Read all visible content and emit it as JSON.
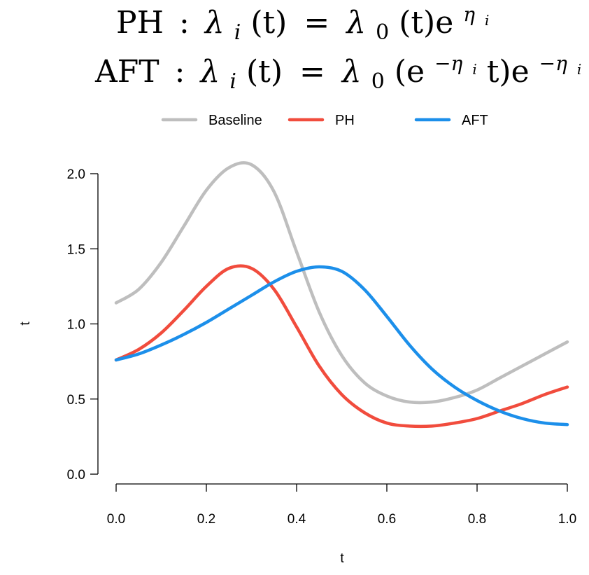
{
  "formulas": {
    "ph": {
      "model": "PH",
      "lhs": "λ",
      "lhs_sub": "i",
      "arg": "(t)",
      "rhs": "λ",
      "rhs_sub": "0",
      "rhs_arg": "(t)e",
      "exp": "η",
      "exp_sub": "i"
    },
    "aft": {
      "model": "AFT",
      "lhs": "λ",
      "lhs_sub": "i",
      "arg": "(t)",
      "rhs": "λ",
      "rhs_sub": "0",
      "rhs_arg_open": "(e",
      "inner_exp": "−η",
      "inner_exp_sub": "i",
      "rhs_arg_close": "t)e",
      "exp": "−η",
      "exp_sub": "i"
    }
  },
  "chart_data": {
    "type": "line",
    "xlabel": "t",
    "ylabel": "t",
    "xlim": [
      0,
      1
    ],
    "ylim": [
      0,
      2
    ],
    "xticks": [
      "0.0",
      "0.2",
      "0.4",
      "0.6",
      "0.8",
      "1.0"
    ],
    "yticks": [
      "0.0",
      "0.5",
      "1.0",
      "1.5",
      "2.0"
    ],
    "grid": false,
    "legend": "top",
    "x": [
      0,
      0.05,
      0.1,
      0.15,
      0.2,
      0.25,
      0.3,
      0.35,
      0.4,
      0.45,
      0.5,
      0.55,
      0.6,
      0.65,
      0.7,
      0.75,
      0.8,
      0.85,
      0.9,
      0.95,
      1.0
    ],
    "series": [
      {
        "name": "Baseline",
        "color": "#bebebe",
        "values": [
          1.14,
          1.23,
          1.41,
          1.65,
          1.89,
          2.04,
          2.06,
          1.88,
          1.48,
          1.08,
          0.79,
          0.61,
          0.52,
          0.48,
          0.48,
          0.51,
          0.56,
          0.64,
          0.72,
          0.8,
          0.88
        ]
      },
      {
        "name": "PH",
        "color": "#f14c3d",
        "values": [
          0.76,
          0.83,
          0.94,
          1.09,
          1.25,
          1.37,
          1.37,
          1.23,
          0.98,
          0.72,
          0.53,
          0.41,
          0.34,
          0.32,
          0.32,
          0.34,
          0.37,
          0.42,
          0.47,
          0.53,
          0.58
        ]
      },
      {
        "name": "AFT",
        "color": "#1c8fea",
        "values": [
          0.76,
          0.8,
          0.86,
          0.93,
          1.01,
          1.1,
          1.19,
          1.28,
          1.35,
          1.38,
          1.35,
          1.23,
          1.05,
          0.86,
          0.7,
          0.58,
          0.49,
          0.42,
          0.37,
          0.34,
          0.33
        ]
      }
    ]
  }
}
